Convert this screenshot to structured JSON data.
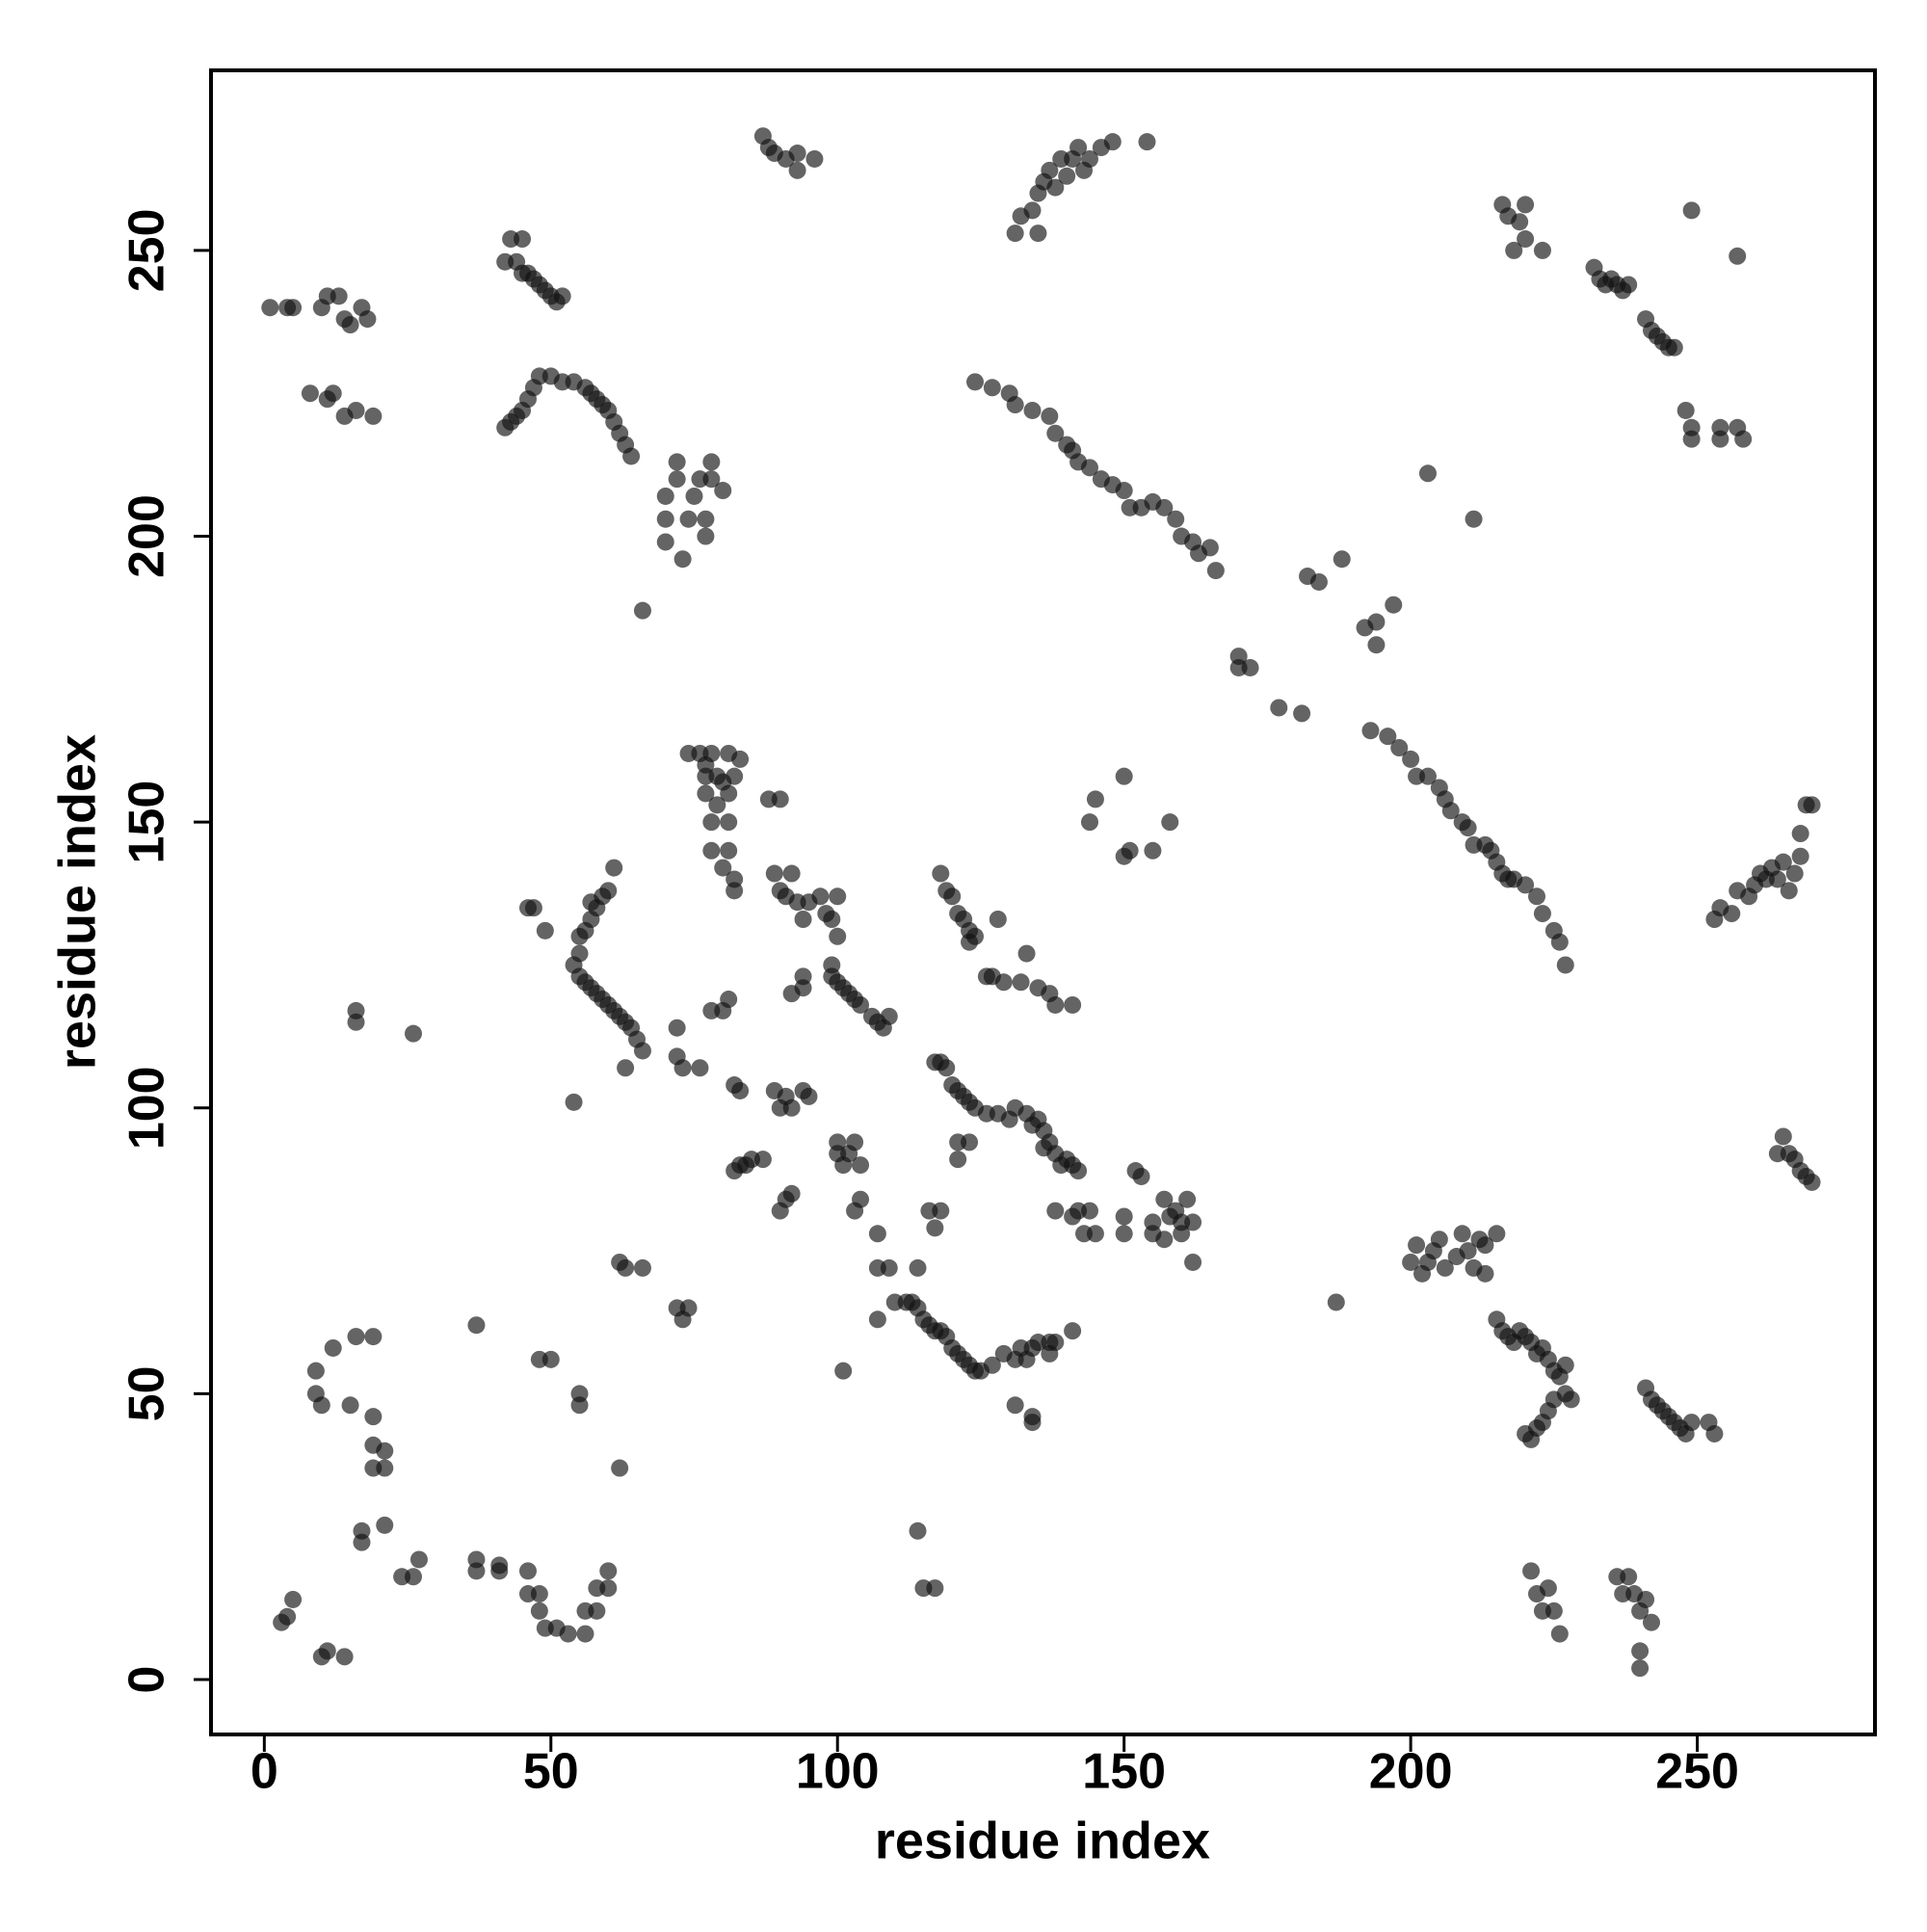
{
  "chart_data": {
    "type": "scatter",
    "xlabel": "residue index",
    "ylabel": "residue index",
    "xlim": [
      -9.3,
      281
    ],
    "ylim": [
      -9.6,
      281.5
    ],
    "xticks": [
      0,
      50,
      100,
      150,
      200,
      250
    ],
    "yticks": [
      0,
      50,
      100,
      150,
      200,
      250
    ],
    "grid": false,
    "color": "#111111",
    "alpha": 0.65,
    "x": [
      3,
      4,
      5,
      10,
      11,
      14,
      12,
      16,
      19,
      10,
      9,
      9,
      15,
      19,
      19,
      21,
      19,
      21,
      17,
      17,
      21,
      24,
      26,
      27,
      37,
      37,
      41,
      41,
      46,
      46,
      48,
      48,
      49,
      51,
      53,
      56,
      56,
      58,
      58,
      60,
      60,
      37,
      48,
      50,
      55,
      55,
      62,
      16,
      16,
      26,
      54,
      1,
      4,
      5,
      10,
      11,
      13,
      14,
      15,
      17,
      18,
      8,
      11,
      12,
      14,
      16,
      19,
      42,
      43,
      44,
      45,
      46,
      47,
      48,
      50,
      52,
      54,
      56,
      57,
      58,
      59,
      60,
      61,
      62,
      63,
      64,
      42,
      43,
      44,
      45,
      46,
      47,
      48,
      49,
      50,
      51,
      52,
      45,
      70,
      70,
      70,
      72,
      72,
      73,
      74,
      75,
      76,
      77,
      77,
      78,
      78,
      80,
      66,
      87,
      88,
      89,
      91,
      93,
      93,
      96,
      131,
      132,
      134,
      135,
      135,
      136,
      137,
      138,
      139,
      140,
      141,
      142,
      143,
      144,
      146,
      148,
      154,
      124,
      127,
      130,
      131,
      134,
      137,
      138,
      140,
      141,
      142,
      144,
      146,
      148,
      150,
      151,
      153,
      155,
      157,
      159,
      160,
      162,
      163,
      165,
      166,
      170,
      170,
      172,
      177,
      181,
      182,
      184,
      188,
      192,
      194,
      194,
      197,
      203,
      211,
      193,
      196,
      198,
      200,
      201,
      203,
      205,
      206,
      207,
      209,
      210,
      211,
      213,
      214,
      215,
      216,
      217,
      218,
      220,
      222,
      223,
      225,
      226,
      227,
      216,
      217,
      219,
      220,
      218,
      220,
      223,
      232,
      233,
      234,
      235,
      236,
      237,
      238,
      241,
      242,
      243,
      244,
      245,
      246,
      249,
      257,
      248,
      249,
      249,
      254,
      254,
      257,
      258,
      253,
      254,
      256,
      257,
      259,
      260,
      261,
      262,
      263,
      264,
      265,
      266,
      267,
      268,
      269,
      268,
      270,
      265,
      266,
      267,
      268,
      269,
      270,
      264,
      200,
      202,
      203,
      204,
      205,
      206,
      208,
      209,
      210,
      211,
      212,
      213,
      215,
      213,
      201,
      187,
      215,
      216,
      217,
      218,
      219,
      220,
      221,
      222,
      223,
      224,
      225,
      226,
      227,
      228,
      227,
      221,
      222,
      223,
      224,
      225,
      220,
      221,
      222,
      223,
      224,
      225,
      226,
      236,
      237,
      238,
      239,
      240,
      241,
      242,
      240,
      240,
      241,
      242,
      243,
      244,
      245,
      246,
      247,
      248,
      249,
      252,
      253,
      46,
      47,
      49,
      54,
      55,
      56,
      57,
      58,
      59,
      60,
      61,
      62,
      63,
      64,
      65,
      66,
      58,
      57,
      59,
      60,
      61,
      55,
      56,
      57,
      55,
      63,
      72,
      72,
      73,
      76,
      78,
      80,
      81,
      62,
      63,
      66,
      72,
      73,
      74,
      74,
      76,
      77,
      77,
      77,
      78,
      79,
      80,
      81,
      81,
      82,
      83,
      78,
      79,
      81,
      78,
      80,
      81,
      82,
      82,
      88,
      90,
      89,
      90,
      91,
      92,
      93,
      94,
      95,
      97,
      98,
      99,
      100,
      100,
      99,
      99,
      100,
      101,
      102,
      103,
      104,
      106,
      107,
      108,
      109,
      92,
      94,
      94,
      89,
      90,
      91,
      92,
      94,
      95,
      100,
      100,
      101,
      102,
      103,
      104,
      90,
      91,
      92,
      103,
      104,
      107,
      107,
      109,
      110,
      112,
      113,
      114,
      115,
      116,
      117,
      118,
      119,
      120,
      121,
      122,
      123,
      124,
      125,
      127,
      129,
      131,
      132,
      133,
      134,
      135,
      137,
      137,
      138,
      141,
      107,
      101,
      114,
      116,
      117,
      118,
      114,
      115,
      117,
      131,
      134,
      134,
      82,
      83,
      83,
      84,
      85,
      87,
      82,
      118,
      119,
      120,
      121,
      122,
      123,
      123,
      124,
      128,
      126,
      127,
      129,
      132,
      135,
      137,
      138,
      141,
      133,
      117,
      118,
      119,
      120,
      121,
      122,
      123,
      124,
      126,
      128,
      130,
      131,
      133,
      134,
      135,
      136,
      136,
      137,
      138,
      139,
      140,
      141,
      142,
      121,
      121,
      123,
      138,
      141,
      142,
      143,
      144,
      145,
      150,
      150,
      152,
      153,
      155,
      155,
      157,
      158,
      159,
      160,
      161,
      162,
      162,
      160,
      157,
      144,
      145,
      150,
      150,
      151,
      155,
      158
    ],
    "values": [
      10,
      11,
      14,
      4,
      5,
      4,
      58,
      60,
      60,
      48,
      50,
      54,
      48,
      46,
      41,
      40,
      37,
      37,
      26,
      24,
      27,
      18,
      18,
      21,
      21,
      19,
      20,
      19,
      19,
      15,
      15,
      12,
      9,
      9,
      8,
      8,
      12,
      12,
      16,
      16,
      19,
      62,
      56,
      56,
      50,
      48,
      37,
      117,
      115,
      113,
      101,
      240,
      240,
      240,
      240,
      242,
      242,
      238,
      237,
      240,
      238,
      225,
      224,
      225,
      221,
      222,
      221,
      219,
      220,
      221,
      222,
      224,
      226,
      228,
      228,
      227,
      227,
      226,
      225,
      224,
      223,
      222,
      220,
      218,
      216,
      214,
      248,
      252,
      248,
      246,
      246,
      245,
      244,
      243,
      242,
      241,
      242,
      252,
      199,
      203,
      207,
      210,
      213,
      196,
      203,
      207,
      210,
      203,
      200,
      210,
      213,
      208,
      187,
      270,
      268,
      267,
      266,
      267,
      264,
      266,
      253,
      256,
      257,
      260,
      253,
      262,
      264,
      261,
      266,
      263,
      266,
      268,
      264,
      266,
      268,
      269,
      269,
      227,
      226,
      225,
      223,
      222,
      221,
      218,
      216,
      215,
      213,
      212,
      210,
      209,
      208,
      205,
      205,
      206,
      205,
      203,
      200,
      199,
      197,
      198,
      194,
      179,
      177,
      177,
      170,
      169,
      193,
      192,
      196,
      184,
      185,
      181,
      188,
      211,
      203,
      166,
      165,
      163,
      161,
      158,
      158,
      156,
      154,
      152,
      150,
      149,
      146,
      146,
      145,
      143,
      141,
      140,
      140,
      139,
      137,
      134,
      131,
      129,
      125,
      258,
      256,
      255,
      258,
      250,
      252,
      250,
      247,
      245,
      244,
      245,
      244,
      243,
      244,
      238,
      236,
      235,
      234,
      233,
      233,
      257,
      249,
      222,
      219,
      217,
      219,
      217,
      219,
      217,
      133,
      135,
      134,
      138,
      137,
      139,
      141,
      140,
      142,
      140,
      143,
      138,
      141,
      144,
      153,
      148,
      153,
      95,
      92,
      91,
      89,
      88,
      87,
      92,
      73,
      71,
      73,
      75,
      77,
      72,
      74,
      78,
      75,
      72,
      77,
      76,
      78,
      71,
      76,
      66,
      63,
      61,
      60,
      59,
      61,
      60,
      59,
      57,
      58,
      56,
      54,
      53,
      50,
      49,
      55,
      42,
      44,
      45,
      47,
      49,
      43,
      19,
      15,
      12,
      16,
      12,
      8,
      18,
      15,
      18,
      15,
      12,
      14,
      10,
      5,
      2,
      51,
      49,
      48,
      47,
      46,
      45,
      44,
      43,
      45,
      45,
      43,
      135,
      135,
      131,
      125,
      123,
      122,
      121,
      120,
      119,
      118,
      117,
      116,
      115,
      114,
      112,
      110,
      135,
      136,
      137,
      138,
      142,
      130,
      131,
      133,
      127,
      107,
      114,
      109,
      107,
      107,
      117,
      117,
      119,
      73,
      72,
      72,
      65,
      63,
      65,
      162,
      162,
      160,
      158,
      155,
      162,
      158,
      157,
      162,
      155,
      158,
      161,
      150,
      153,
      150,
      145,
      142,
      145,
      140,
      138,
      154,
      154,
      141,
      138,
      137,
      141,
      136,
      133,
      136,
      137,
      134,
      133,
      137,
      130,
      125,
      123,
      122,
      121,
      120,
      119,
      118,
      116,
      115,
      114,
      116,
      120,
      121,
      123,
      103,
      100,
      102,
      100,
      103,
      102,
      92,
      94,
      90,
      92,
      94,
      90,
      82,
      84,
      85,
      82,
      84,
      78,
      72,
      72,
      66,
      66,
      66,
      65,
      63,
      62,
      61,
      61,
      60,
      58,
      57,
      56,
      55,
      54,
      54,
      55,
      57,
      56,
      58,
      56,
      58,
      59,
      57,
      59,
      59,
      61,
      63,
      54,
      72,
      82,
      79,
      82,
      26,
      16,
      16,
      48,
      46,
      45,
      104,
      103,
      90,
      90,
      91,
      91,
      89,
      141,
      138,
      137,
      134,
      133,
      131,
      129,
      130,
      133,
      123,
      123,
      122,
      122,
      121,
      120,
      118,
      118,
      127,
      108,
      108,
      107,
      104,
      103,
      102,
      101,
      100,
      99,
      99,
      98,
      100,
      99,
      97,
      98,
      96,
      93,
      94,
      92,
      90,
      91,
      90,
      89,
      94,
      91,
      94,
      82,
      81,
      82,
      78,
      82,
      78,
      81,
      78,
      89,
      88,
      80,
      78,
      84,
      81,
      82,
      78,
      84,
      80,
      73,
      80,
      77,
      150,
      154,
      158,
      144,
      145,
      145,
      150
    ]
  }
}
